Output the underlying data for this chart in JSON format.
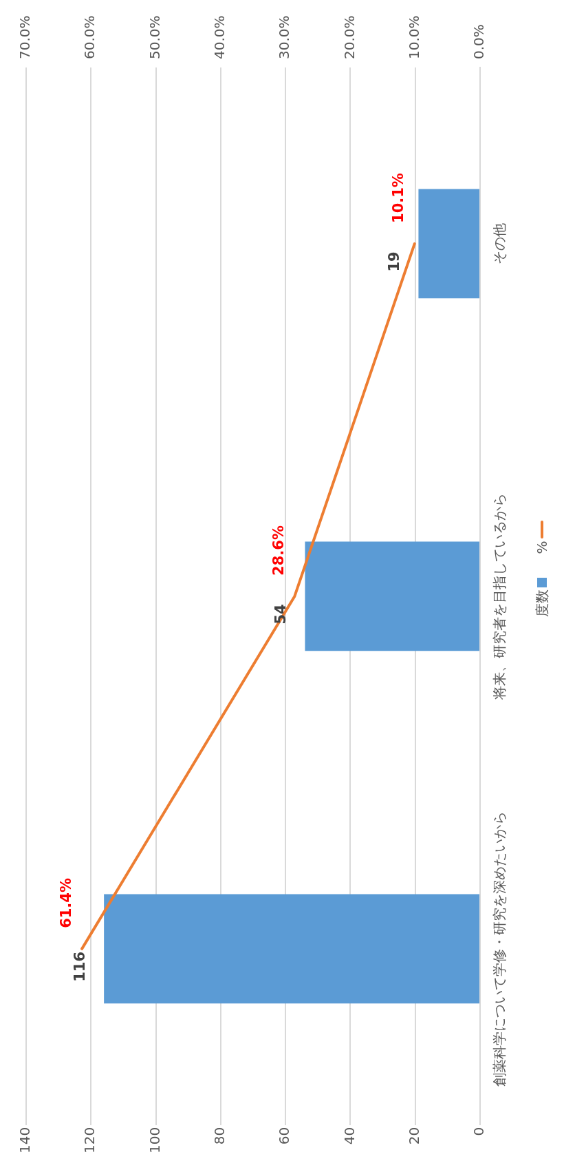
{
  "chart_data": {
    "type": "bar",
    "orientation": "horizontal",
    "categories": [
      "その他",
      "将来、研究者を目指しているから",
      "創薬科学について学修・研究を深めたいから"
    ],
    "series": [
      {
        "name": "度数",
        "color": "#5b9bd5",
        "values": [
          19,
          54,
          116
        ],
        "value_labels": [
          "19",
          "54",
          "116"
        ]
      },
      {
        "name": "%",
        "type": "line",
        "axis": "x2",
        "color": "#ed7d31",
        "values": [
          10.1,
          28.6,
          61.4
        ],
        "value_labels": [
          "10.1%",
          "28.6%",
          "61.4%"
        ]
      }
    ],
    "xlim": [
      140,
      0
    ],
    "xticks": [
      0,
      20,
      40,
      60,
      80,
      100,
      120,
      140
    ],
    "x2lim": [
      70,
      0
    ],
    "x2ticks": [
      {
        "value": 0,
        "label": "0.0%"
      },
      {
        "value": 10,
        "label": "10.0%"
      },
      {
        "value": 20,
        "label": "20.0%"
      },
      {
        "value": 30,
        "label": "30.0%"
      },
      {
        "value": 40,
        "label": "40.0%"
      },
      {
        "value": 50,
        "label": "50.0%"
      },
      {
        "value": 60,
        "label": "60.0%"
      },
      {
        "value": 70,
        "label": "70.0%"
      }
    ],
    "grid": "x",
    "legend": "right",
    "marker": "none"
  }
}
